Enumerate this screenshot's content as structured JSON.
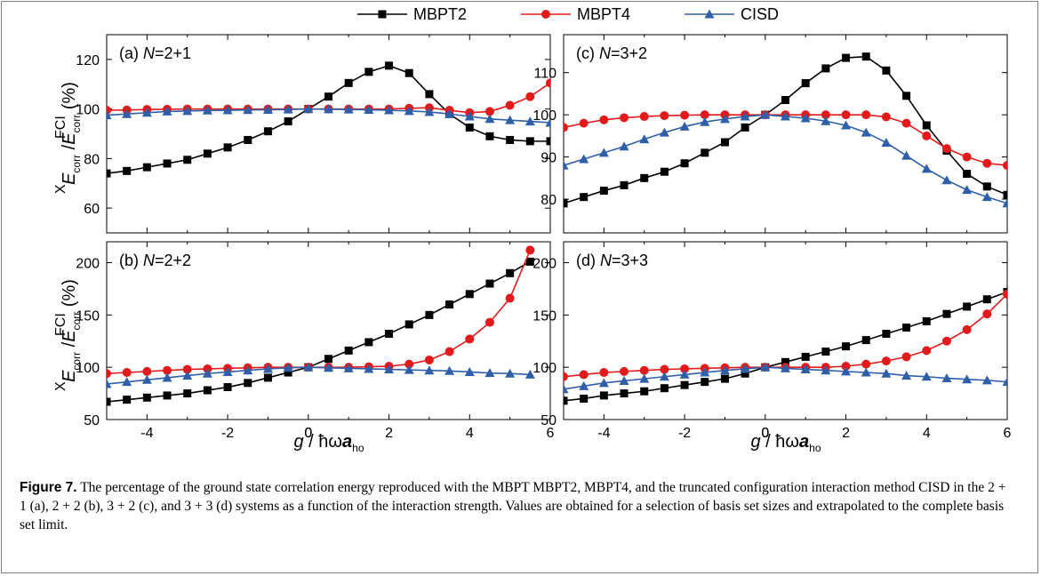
{
  "legend": {
    "series": [
      {
        "name": "MBPT2",
        "color": "#000000",
        "marker": "square"
      },
      {
        "name": "MBPT4",
        "color": "#e31a1c",
        "marker": "circle"
      },
      {
        "name": "CISD",
        "color": "#2f5fa8",
        "marker": "triangle"
      }
    ]
  },
  "axis_titles": {
    "ylabel": "E^X_corr / E^FCI_corr (%)",
    "ylabel_parts": {
      "sym": "E",
      "sup_top": "X",
      "sub_top": "corr",
      "slash": "/",
      "sup_bot": "FCI",
      "sub_bot": "corr",
      "unit": "(%)"
    },
    "xlabel": "g / ħωa_ho",
    "xlabel_parts": {
      "sym": "g",
      "slash": "/ ħω",
      "a": "a",
      "sub": "ho"
    }
  },
  "caption": {
    "label": "Figure 7.",
    "text": "The percentage of the ground state correlation energy reproduced with the MBPT MBPT2, MBPT4, and the truncated configuration interaction method CISD in the 2 + 1 (a), 2 + 2 (b), 3 + 2 (c), and 3 + 3 (d) systems as a function of the interaction strength. Values are obtained for a selection of basis set sizes and extrapolated to the complete basis set limit."
  },
  "chart_data": [
    {
      "type": "line",
      "panel": "a",
      "label": "(a) N=2+1",
      "label_parts": {
        "prefix": "(a) ",
        "italic": "N",
        "suffix": "=2+1"
      },
      "xlim": [
        -5,
        6
      ],
      "ylim": [
        50,
        130
      ],
      "xticks": [
        -4,
        -2,
        0,
        2,
        4,
        6
      ],
      "yticks": [
        60,
        80,
        100,
        120
      ],
      "series": [
        {
          "name": "MBPT2",
          "x": [
            -5,
            -4.5,
            -4,
            -3.5,
            -3,
            -2.5,
            -2,
            -1.5,
            -1,
            -0.5,
            0,
            0.5,
            1,
            1.5,
            2,
            2.5,
            3,
            3.5,
            4,
            4.5,
            5,
            5.5,
            6
          ],
          "y": [
            74,
            75,
            76.5,
            78,
            79.5,
            82,
            84.5,
            87.5,
            91,
            95,
            100,
            105,
            110.5,
            115,
            117.5,
            114.5,
            106,
            98,
            92.5,
            89,
            87.5,
            87,
            87
          ]
        },
        {
          "name": "MBPT4",
          "x": [
            -5,
            -4.5,
            -4,
            -3.5,
            -3,
            -2.5,
            -2,
            -1.5,
            -1,
            -0.5,
            0,
            0.5,
            1,
            1.5,
            2,
            2.5,
            3,
            3.5,
            4,
            4.5,
            5,
            5.5,
            6
          ],
          "y": [
            99.5,
            99.6,
            99.8,
            99.9,
            100,
            100,
            100,
            100,
            100,
            100,
            100,
            100,
            100,
            100,
            100,
            100.3,
            100.5,
            99.5,
            98.5,
            99,
            101.5,
            105,
            110.5
          ]
        },
        {
          "name": "CISD",
          "x": [
            -5,
            -4.5,
            -4,
            -3.5,
            -3,
            -2.5,
            -2,
            -1.5,
            -1,
            -0.5,
            0,
            0.5,
            1,
            1.5,
            2,
            2.5,
            3,
            3.5,
            4,
            4.5,
            5,
            5.5,
            6
          ],
          "y": [
            97.5,
            98,
            98.5,
            99,
            99.2,
            99.4,
            99.5,
            99.6,
            99.7,
            99.8,
            100,
            99.9,
            99.8,
            99.7,
            99.5,
            99.2,
            98.8,
            98,
            97,
            96,
            95.5,
            95,
            94.5
          ]
        }
      ]
    },
    {
      "type": "line",
      "panel": "c",
      "label": "(c) N=3+2",
      "label_parts": {
        "prefix": "(c) ",
        "italic": "N",
        "suffix": "=3+2"
      },
      "xlim": [
        -5,
        6
      ],
      "ylim": [
        72,
        119
      ],
      "xticks": [
        -4,
        -2,
        0,
        2,
        4,
        6
      ],
      "yticks": [
        80,
        90,
        100,
        110
      ],
      "series": [
        {
          "name": "MBPT2",
          "x": [
            -5,
            -4.5,
            -4,
            -3.5,
            -3,
            -2.5,
            -2,
            -1.5,
            -1,
            -0.5,
            0,
            0.5,
            1,
            1.5,
            2,
            2.5,
            3,
            3.5,
            4,
            4.5,
            5,
            5.5,
            6
          ],
          "y": [
            79,
            80.5,
            82,
            83.3,
            85,
            86.5,
            88.5,
            91,
            93.5,
            97,
            100,
            103.5,
            107.5,
            111,
            113.5,
            113.8,
            110.5,
            104.5,
            97.5,
            91.5,
            86,
            83,
            81
          ]
        },
        {
          "name": "MBPT4",
          "x": [
            -5,
            -4.5,
            -4,
            -3.5,
            -3,
            -2.5,
            -2,
            -1.5,
            -1,
            -0.5,
            0,
            0.5,
            1,
            1.5,
            2,
            2.5,
            3,
            3.5,
            4,
            4.5,
            5,
            5.5,
            6
          ],
          "y": [
            97,
            98,
            98.8,
            99.3,
            99.6,
            99.8,
            99.9,
            100,
            100,
            100,
            100,
            100,
            100,
            100,
            100,
            100,
            99.5,
            98,
            95,
            92,
            90,
            88.5,
            88
          ]
        },
        {
          "name": "CISD",
          "x": [
            -5,
            -4.5,
            -4,
            -3.5,
            -3,
            -2.5,
            -2,
            -1.5,
            -1,
            -0.5,
            0,
            0.5,
            1,
            1.5,
            2,
            2.5,
            3,
            3.5,
            4,
            4.5,
            5,
            5.5,
            6
          ],
          "y": [
            88,
            89.5,
            91,
            92.5,
            94.2,
            95.8,
            97.2,
            98.3,
            99,
            99.6,
            100,
            99.6,
            99.2,
            98.5,
            97.5,
            95.8,
            93.4,
            90.3,
            87.2,
            84.5,
            82.2,
            80.5,
            79
          ]
        }
      ]
    },
    {
      "type": "line",
      "panel": "b",
      "label": "(b) N=2+2",
      "label_parts": {
        "prefix": "(b) ",
        "italic": "N",
        "suffix": "=2+2"
      },
      "xlim": [
        -5,
        6
      ],
      "ylim": [
        50,
        220
      ],
      "xticks": [
        -4,
        -2,
        0,
        2,
        4,
        6
      ],
      "yticks": [
        50,
        100,
        150,
        200
      ],
      "series": [
        {
          "name": "MBPT2",
          "x": [
            -5,
            -4.5,
            -4,
            -3.5,
            -3,
            -2.5,
            -2,
            -1.5,
            -1,
            -0.5,
            0,
            0.5,
            1,
            1.5,
            2,
            2.5,
            3,
            3.5,
            4,
            4.5,
            5,
            5.5
          ],
          "y": [
            67,
            69,
            71,
            73,
            75,
            78,
            81,
            85,
            90,
            95,
            100,
            108,
            116,
            124,
            132,
            141,
            150,
            160,
            170,
            180,
            190,
            201
          ]
        },
        {
          "name": "MBPT4",
          "x": [
            -5,
            -4.5,
            -4,
            -3.5,
            -3,
            -2.5,
            -2,
            -1.5,
            -1,
            -0.5,
            0,
            0.5,
            1,
            1.5,
            2,
            2.5,
            3,
            3.5,
            4,
            4.5,
            5,
            5.5
          ],
          "y": [
            94,
            95,
            96,
            97,
            98,
            98.5,
            99,
            99.5,
            100,
            100,
            100,
            100,
            100,
            100.5,
            101,
            103,
            107,
            115,
            127,
            143,
            166,
            212
          ]
        },
        {
          "name": "CISD",
          "x": [
            -5,
            -4.5,
            -4,
            -3.5,
            -3,
            -2.5,
            -2,
            -1.5,
            -1,
            -0.5,
            0,
            0.5,
            1,
            1.5,
            2,
            2.5,
            3,
            3.5,
            4,
            4.5,
            5,
            5.5
          ],
          "y": [
            84,
            86,
            88,
            90,
            92,
            94,
            95.5,
            97,
            98.5,
            99.5,
            100,
            99.5,
            99,
            98.5,
            98,
            97.5,
            97,
            96.5,
            95.5,
            94.5,
            94,
            93
          ]
        }
      ]
    },
    {
      "type": "line",
      "panel": "d",
      "label": "(d) N=3+3",
      "label_parts": {
        "prefix": "(d) ",
        "italic": "N",
        "suffix": "=3+3"
      },
      "xlim": [
        -5,
        6
      ],
      "ylim": [
        50,
        220
      ],
      "xticks": [
        -4,
        -2,
        0,
        2,
        4,
        6
      ],
      "yticks": [
        50,
        100,
        150,
        200
      ],
      "series": [
        {
          "name": "MBPT2",
          "x": [
            -5,
            -4.5,
            -4,
            -3.5,
            -3,
            -2.5,
            -2,
            -1.5,
            -1,
            -0.5,
            0,
            0.5,
            1,
            1.5,
            2,
            2.5,
            3,
            3.5,
            4,
            4.5,
            5,
            5.5,
            6
          ],
          "y": [
            68,
            70,
            73,
            75,
            77,
            80,
            83,
            86,
            89,
            94,
            100,
            105,
            110,
            115,
            120,
            126,
            132,
            138,
            144,
            151,
            158,
            165,
            172
          ]
        },
        {
          "name": "MBPT4",
          "x": [
            -5,
            -4.5,
            -4,
            -3.5,
            -3,
            -2.5,
            -2,
            -1.5,
            -1,
            -0.5,
            0,
            0.5,
            1,
            1.5,
            2,
            2.5,
            3,
            3.5,
            4,
            4.5,
            5,
            5.5,
            6
          ],
          "y": [
            91,
            93,
            95,
            96,
            97,
            98,
            98.5,
            99,
            99.5,
            100,
            100,
            100,
            100,
            100,
            101,
            103,
            106,
            110,
            116,
            125,
            136,
            151,
            170
          ]
        },
        {
          "name": "CISD",
          "x": [
            -5,
            -4.5,
            -4,
            -3.5,
            -3,
            -2.5,
            -2,
            -1.5,
            -1,
            -0.5,
            0,
            0.5,
            1,
            1.5,
            2,
            2.5,
            3,
            3.5,
            4,
            4.5,
            5,
            5.5,
            6
          ],
          "y": [
            79,
            82,
            85,
            87,
            89,
            91,
            93,
            95,
            97,
            98.5,
            100,
            99,
            98,
            97,
            96,
            95,
            94,
            92,
            91,
            89.5,
            88.5,
            87.5,
            86
          ]
        }
      ]
    }
  ]
}
